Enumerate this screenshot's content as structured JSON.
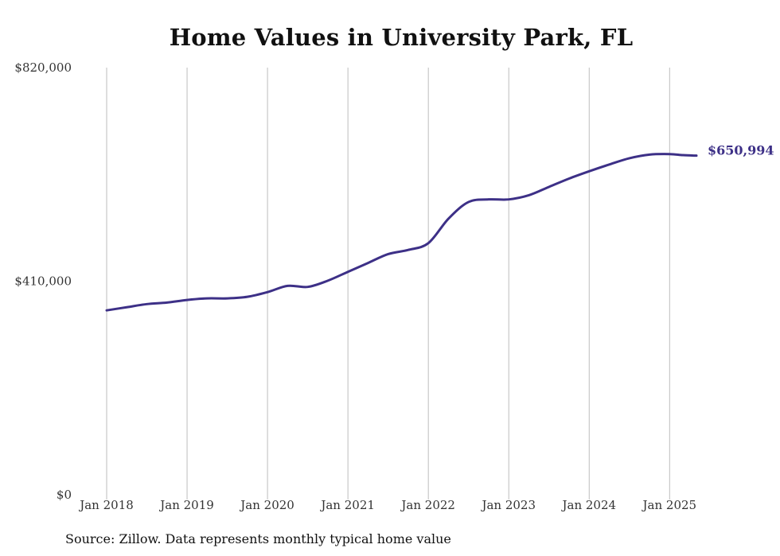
{
  "chart_data": {
    "type": "line",
    "title": "Home Values in University Park, FL",
    "xlabel": "",
    "ylabel": "",
    "ylim": [
      0,
      820000
    ],
    "y_ticks": [
      0,
      410000,
      820000
    ],
    "y_tick_labels": [
      "$0",
      "$410,000",
      "$820,000"
    ],
    "x_tick_labels": [
      "Jan 2018",
      "Jan 2019",
      "Jan 2020",
      "Jan 2021",
      "Jan 2022",
      "Jan 2023",
      "Jan 2024",
      "Jan 2025"
    ],
    "x_range": [
      "2018-01",
      "2025-05"
    ],
    "grid": "vertical",
    "end_label": "$650,994",
    "line_color": "#3d3087",
    "series": [
      {
        "x": [
          "2018-01",
          "2018-04",
          "2018-07",
          "2018-10",
          "2019-01",
          "2019-04",
          "2019-07",
          "2019-10",
          "2020-01",
          "2020-04",
          "2020-07",
          "2020-10",
          "2021-01",
          "2021-04",
          "2021-07",
          "2021-10",
          "2022-01",
          "2022-04",
          "2022-07",
          "2022-10",
          "2023-01",
          "2023-04",
          "2023-07",
          "2023-10",
          "2024-01",
          "2024-04",
          "2024-07",
          "2024-10",
          "2025-01",
          "2025-03",
          "2025-05"
        ],
        "values": [
          354000,
          360000,
          366000,
          369000,
          374000,
          377000,
          377000,
          380000,
          389000,
          401000,
          399000,
          411000,
          428000,
          445000,
          462000,
          470000,
          483000,
          530000,
          562000,
          567000,
          567000,
          575000,
          591000,
          607000,
          621000,
          634000,
          646000,
          653000,
          654000,
          652000,
          650994
        ]
      }
    ]
  },
  "source": "Source: Zillow. Data represents monthly typical home value"
}
